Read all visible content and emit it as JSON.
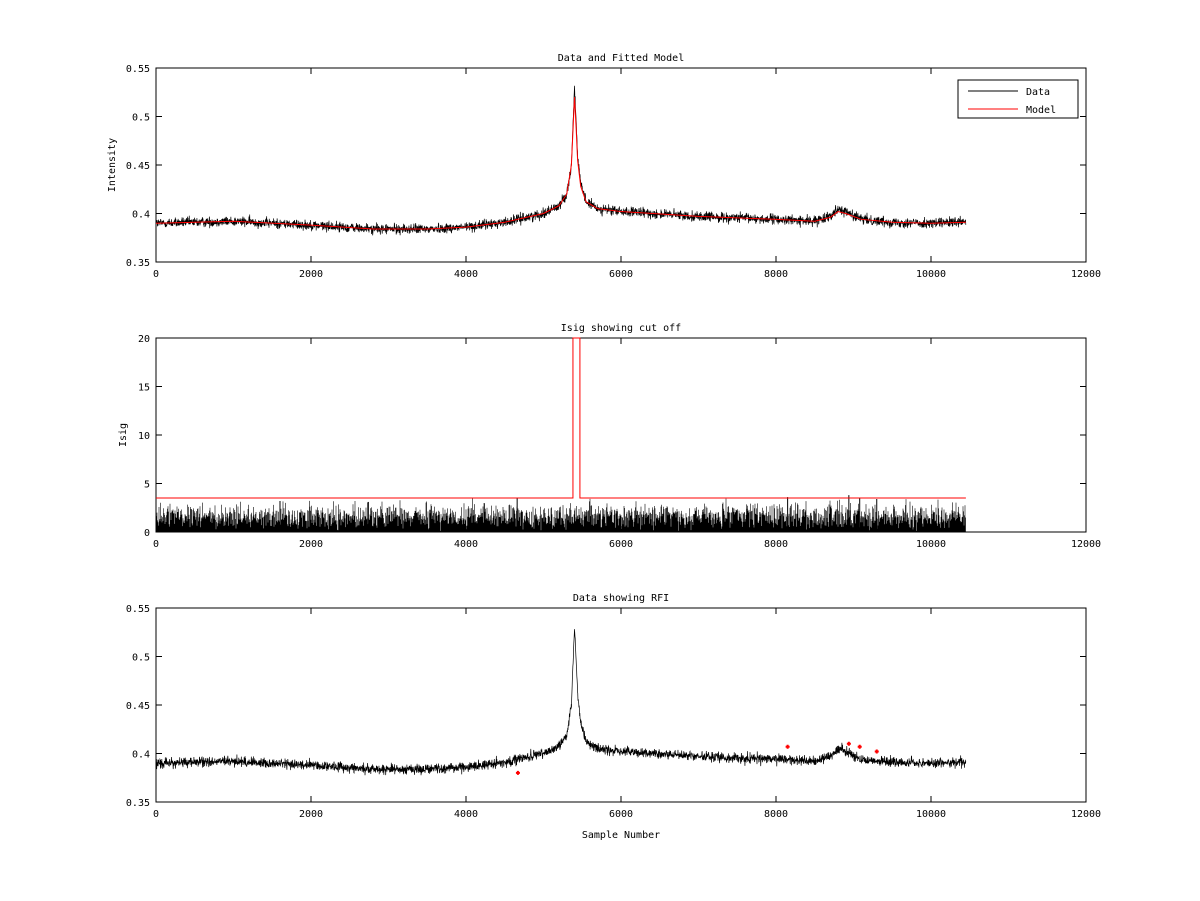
{
  "chart_data": [
    {
      "type": "line",
      "title": "Data and Fitted Model",
      "xlabel": "",
      "ylabel": "Intensity",
      "xlim": [
        0,
        12000
      ],
      "ylim": [
        0.35,
        0.55
      ],
      "xticks": [
        0,
        2000,
        4000,
        6000,
        8000,
        10000,
        12000
      ],
      "xtick_labels": [
        "0",
        "2000",
        "4000",
        "6000",
        "8000",
        "10000",
        "12000"
      ],
      "yticks": [
        0.35,
        0.4,
        0.45,
        0.5,
        0.55
      ],
      "ytick_labels": [
        "0.35",
        "0.4",
        "0.45",
        "0.5",
        "0.55"
      ],
      "grid": false,
      "legend_position": "top-right",
      "series": [
        {
          "name": "Data",
          "color": "#000000",
          "noise": 0.005,
          "x": [
            0,
            1000,
            2000,
            2800,
            3500,
            4000,
            4500,
            5000,
            5200,
            5300,
            5360,
            5400,
            5420,
            5440,
            5480,
            5550,
            5700,
            6000,
            7000,
            8000,
            8500,
            8700,
            8800,
            8900,
            9100,
            9500,
            10000,
            10450
          ],
          "y": [
            0.39,
            0.392,
            0.388,
            0.384,
            0.384,
            0.386,
            0.391,
            0.4,
            0.408,
            0.42,
            0.45,
            0.53,
            0.5,
            0.46,
            0.43,
            0.412,
            0.405,
            0.402,
            0.397,
            0.394,
            0.392,
            0.398,
            0.405,
            0.402,
            0.394,
            0.391,
            0.39,
            0.391
          ]
        },
        {
          "name": "Model",
          "color": "#ff0000",
          "x": [
            0,
            1000,
            2000,
            2800,
            3500,
            4000,
            4500,
            5000,
            5200,
            5300,
            5360,
            5400,
            5420,
            5440,
            5480,
            5550,
            5700,
            6000,
            7000,
            8000,
            8500,
            8700,
            8800,
            8900,
            9100,
            9500,
            10000,
            10450
          ],
          "y": [
            0.39,
            0.392,
            0.388,
            0.384,
            0.384,
            0.386,
            0.391,
            0.4,
            0.408,
            0.42,
            0.45,
            0.52,
            0.49,
            0.455,
            0.428,
            0.412,
            0.405,
            0.402,
            0.397,
            0.394,
            0.392,
            0.396,
            0.402,
            0.4,
            0.394,
            0.391,
            0.39,
            0.391
          ]
        }
      ]
    },
    {
      "type": "line",
      "title": "Isig showing cut off",
      "xlabel": "",
      "ylabel": "Isig",
      "xlim": [
        0,
        12000
      ],
      "ylim": [
        0,
        20
      ],
      "xticks": [
        0,
        2000,
        4000,
        6000,
        8000,
        10000,
        12000
      ],
      "xtick_labels": [
        "0",
        "2000",
        "4000",
        "6000",
        "8000",
        "10000",
        "12000"
      ],
      "yticks": [
        0,
        5,
        10,
        15,
        20
      ],
      "ytick_labels": [
        "0",
        "5",
        "10",
        "15",
        "20"
      ],
      "grid": false,
      "series": [
        {
          "color": "#000000",
          "x_range": [
            0,
            10450
          ],
          "baseline": 0.8,
          "typical_max": 2.5,
          "x": [
            1600,
            2740,
            4660,
            8150,
            8940,
            9080,
            9300
          ],
          "y": [
            3.2,
            3.1,
            3.5,
            3.6,
            3.8,
            3.5,
            3.4
          ]
        },
        {
          "color": "#ff0000",
          "x": [
            0,
            5380,
            5380,
            5470,
            5470,
            10450
          ],
          "y": [
            3.5,
            3.5,
            20,
            20,
            3.5,
            3.5
          ]
        }
      ]
    },
    {
      "type": "line",
      "title": "Data showing RFI",
      "xlabel": "Sample Number",
      "ylabel": "",
      "xlim": [
        0,
        12000
      ],
      "ylim": [
        0.35,
        0.55
      ],
      "xticks": [
        0,
        2000,
        4000,
        6000,
        8000,
        10000,
        12000
      ],
      "xtick_labels": [
        "0",
        "2000",
        "4000",
        "6000",
        "8000",
        "10000",
        "12000"
      ],
      "yticks": [
        0.35,
        0.4,
        0.45,
        0.5,
        0.55
      ],
      "ytick_labels": [
        "0.35",
        "0.4",
        "0.45",
        "0.5",
        "0.55"
      ],
      "grid": false,
      "series": [
        {
          "color": "#000000",
          "noise": 0.005,
          "x": [
            0,
            1000,
            2000,
            2800,
            3500,
            4000,
            4500,
            5000,
            5200,
            5300,
            5360,
            5400,
            5420,
            5440,
            5480,
            5550,
            5700,
            6000,
            7000,
            8000,
            8500,
            8700,
            8800,
            8900,
            9100,
            9500,
            10000,
            10450
          ],
          "y": [
            0.39,
            0.392,
            0.388,
            0.384,
            0.384,
            0.386,
            0.391,
            0.4,
            0.408,
            0.42,
            0.45,
            0.53,
            0.5,
            0.46,
            0.43,
            0.412,
            0.405,
            0.402,
            0.397,
            0.394,
            0.392,
            0.398,
            0.405,
            0.402,
            0.394,
            0.391,
            0.39,
            0.391
          ]
        },
        {
          "type": "scatter",
          "color": "#ff0000",
          "x": [
            4670,
            8150,
            8940,
            9080,
            9300
          ],
          "y": [
            0.38,
            0.407,
            0.41,
            0.407,
            0.402
          ]
        }
      ]
    }
  ]
}
